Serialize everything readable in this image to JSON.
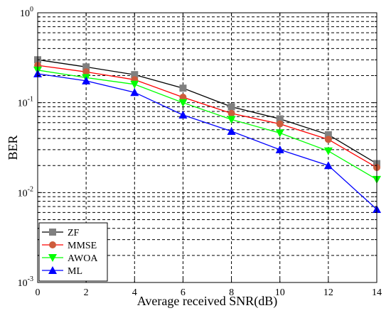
{
  "chart_data": {
    "type": "line",
    "xlabel": "Average received SNR(dB)",
    "ylabel": "BER",
    "x": [
      0,
      2,
      4,
      6,
      8,
      10,
      12,
      14
    ],
    "xlim": [
      0,
      14
    ],
    "ylim": [
      0.001,
      1
    ],
    "yscale": "log",
    "x_ticks": [
      "0",
      "2",
      "4",
      "6",
      "8",
      "10",
      "12",
      "14"
    ],
    "y_ticks": [
      {
        "base": "10",
        "exp": "-3"
      },
      {
        "base": "10",
        "exp": "-2"
      },
      {
        "base": "10",
        "exp": "-1"
      },
      {
        "base": "10",
        "exp": "0"
      }
    ],
    "grid": true,
    "legend_position": "bottom-left",
    "series": [
      {
        "name": "ZF",
        "color": "#000000",
        "marker": "square",
        "marker_color": "#808080",
        "values": [
          0.3,
          0.25,
          0.205,
          0.145,
          0.09,
          0.066,
          0.044,
          0.021
        ]
      },
      {
        "name": "MMSE",
        "color": "#ff0000",
        "marker": "circle",
        "marker_color": "#cd5c3c",
        "values": [
          0.26,
          0.22,
          0.18,
          0.115,
          0.076,
          0.058,
          0.039,
          0.019
        ]
      },
      {
        "name": "AWOA",
        "color": "#00ff00",
        "marker": "triangle-down",
        "marker_color": "#00ff00",
        "values": [
          0.23,
          0.19,
          0.16,
          0.1,
          0.065,
          0.046,
          0.029,
          0.014
        ]
      },
      {
        "name": "ML",
        "color": "#0000ff",
        "marker": "triangle-up",
        "marker_color": "#0000ff",
        "values": [
          0.21,
          0.175,
          0.13,
          0.073,
          0.048,
          0.03,
          0.02,
          0.0065
        ]
      }
    ]
  }
}
